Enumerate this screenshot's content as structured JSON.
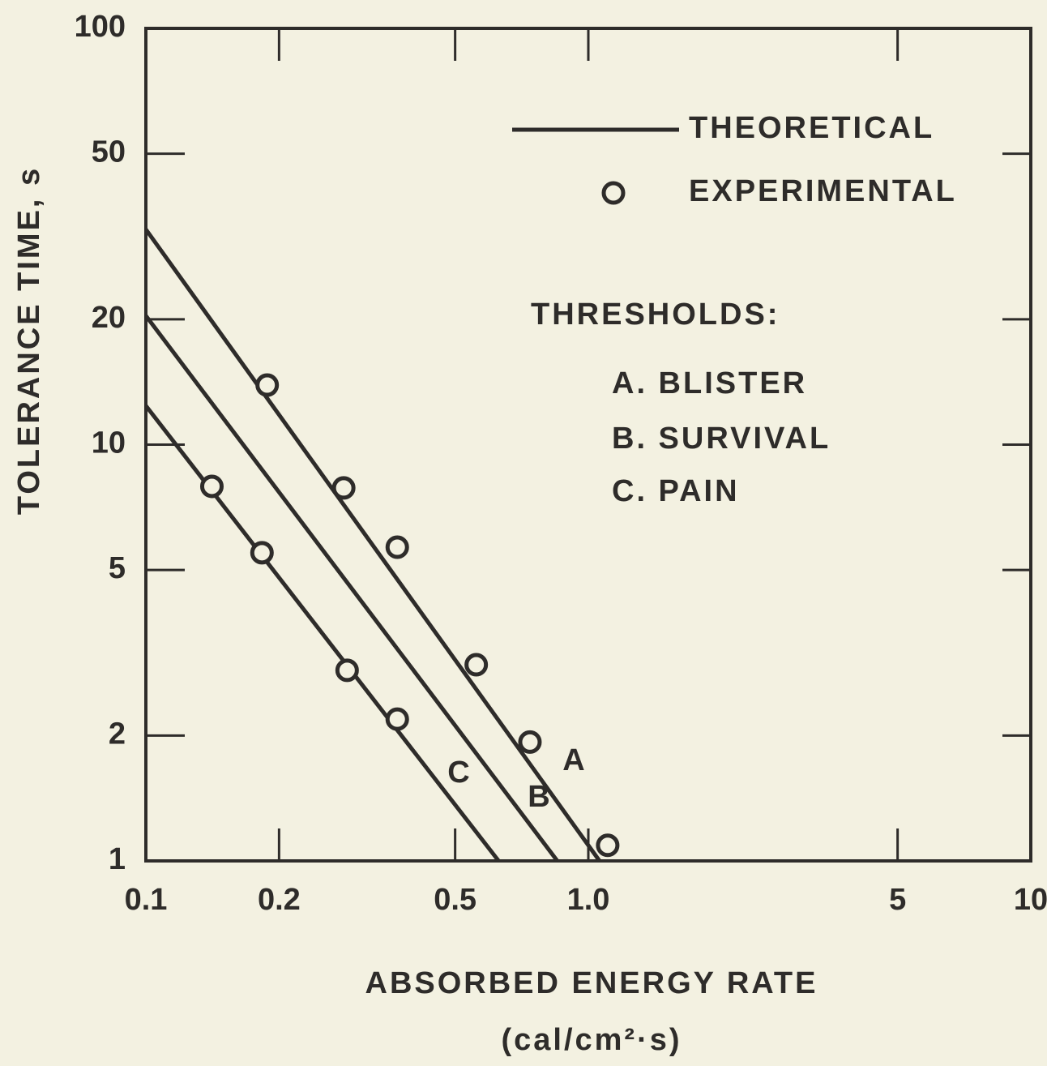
{
  "chart_data": {
    "type": "line",
    "xscale": "log",
    "yscale": "log",
    "xlabel": "ABSORBED ENERGY RATE",
    "xunit": "(cal/cm²·s)",
    "ylabel": "TOLERANCE TIME, s",
    "xlim": [
      0.1,
      10
    ],
    "ylim": [
      1,
      100
    ],
    "xticks": [
      0.1,
      0.2,
      0.5,
      {
        "value": 1,
        "label": "1.0"
      },
      5,
      10
    ],
    "yticks": [
      1,
      2,
      5,
      10,
      20,
      50,
      100
    ],
    "color": "#2e2c2a",
    "legend": [
      {
        "label": "THEORETICAL",
        "style": "line"
      },
      {
        "label": "EXPERIMENTAL",
        "style": "marker"
      }
    ],
    "notes": {
      "heading": "THRESHOLDS:",
      "items": [
        "A. BLISTER",
        "B. SURVIVAL",
        "C. PAIN"
      ]
    },
    "series": [
      {
        "name": "A",
        "x": [
          0.1,
          1.06
        ],
        "values": [
          32.9,
          1
        ],
        "points_x": [
          0.188,
          0.28,
          0.37,
          0.558,
          0.738,
          1.106
        ],
        "points_values": [
          13.9,
          7.87,
          5.67,
          2.96,
          1.93,
          1.09
        ]
      },
      {
        "name": "B",
        "x": [
          0.1,
          0.851
        ],
        "values": [
          20.4,
          1
        ]
      },
      {
        "name": "C",
        "x": [
          0.1,
          0.627
        ],
        "values": [
          12.4,
          1
        ],
        "points_x": [
          0.141,
          0.183,
          0.285,
          0.37
        ],
        "points_values": [
          7.94,
          5.5,
          2.87,
          2.19
        ]
      }
    ]
  }
}
